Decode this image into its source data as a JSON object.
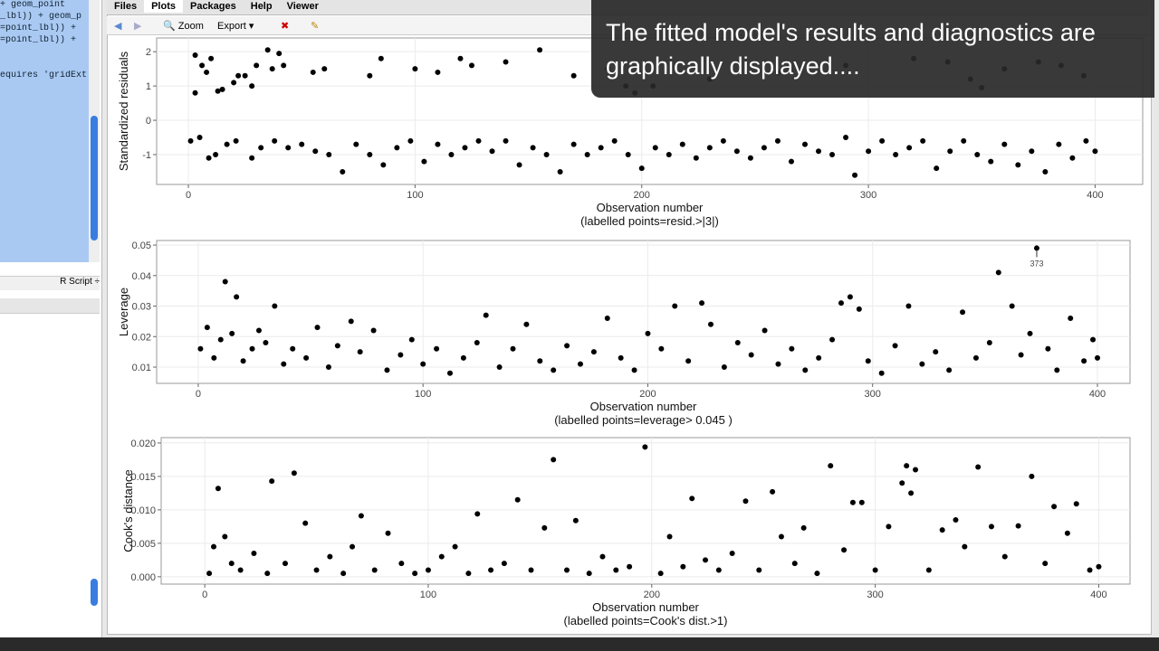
{
  "editor": {
    "lines": [
      "+ geom_point",
      "_lbl)) + geom_p",
      "=point_lbl)) +",
      "=point_lbl)) +",
      "equires 'gridExt"
    ],
    "file_type": "R Script ÷"
  },
  "tabs": [
    "Files",
    "Plots",
    "Packages",
    "Help",
    "Viewer"
  ],
  "toolbar": [
    "Zoom",
    "Export"
  ],
  "caption": "The fitted model's results and diagnostics are graphically displayed....",
  "chart_data": [
    {
      "type": "scatter",
      "ylabel": "Standardized residuals",
      "xlabel": "Observation number",
      "caption": "(labelled points=resid.>|3|)",
      "color": "#000000",
      "grid": true,
      "xlim": [
        -14,
        421
      ],
      "ylim": [
        -1.87,
        2.4
      ],
      "xticks": [
        0,
        100,
        200,
        300,
        400
      ],
      "yticks": [
        -1,
        0,
        1,
        2
      ],
      "x": [
        3,
        3,
        6,
        8,
        10,
        13,
        15,
        20,
        22,
        25,
        28,
        30,
        35,
        37,
        40,
        42,
        55,
        60,
        80,
        85,
        100,
        110,
        120,
        125,
        140,
        155,
        170,
        185,
        193,
        197,
        205,
        230,
        260,
        290,
        320,
        335,
        345,
        350,
        360,
        375,
        385,
        395,
        1,
        5,
        9,
        12,
        17,
        21,
        28,
        32,
        38,
        44,
        50,
        56,
        62,
        68,
        74,
        80,
        86,
        92,
        98,
        104,
        110,
        116,
        122,
        128,
        134,
        140,
        146,
        152,
        158,
        164,
        170,
        176,
        182,
        188,
        194,
        200,
        206,
        212,
        218,
        224,
        230,
        236,
        242,
        248,
        254,
        260,
        266,
        272,
        278,
        284,
        290,
        294,
        300,
        306,
        312,
        318,
        324,
        330,
        336,
        342,
        348,
        354,
        360,
        366,
        372,
        378,
        384,
        390,
        396,
        400
      ],
      "values": [
        0.8,
        1.9,
        1.6,
        1.4,
        1.8,
        0.85,
        0.9,
        1.1,
        1.3,
        1.3,
        1.0,
        1.6,
        2.05,
        1.5,
        1.95,
        1.6,
        1.4,
        1.5,
        1.3,
        1.8,
        1.5,
        1.4,
        1.8,
        1.6,
        1.7,
        2.05,
        1.3,
        1.5,
        1.0,
        0.8,
        1.0,
        1.2,
        1.4,
        1.6,
        1.8,
        1.7,
        1.2,
        0.95,
        1.5,
        1.7,
        1.6,
        1.3,
        -0.6,
        -0.5,
        -1.1,
        -1.0,
        -0.7,
        -0.6,
        -1.1,
        -0.8,
        -0.6,
        -0.8,
        -0.7,
        -0.9,
        -1.0,
        -1.5,
        -0.7,
        -1.0,
        -1.3,
        -0.8,
        -0.6,
        -1.2,
        -0.7,
        -1.0,
        -0.8,
        -0.6,
        -0.9,
        -0.6,
        -1.3,
        -0.8,
        -1.0,
        -1.5,
        -0.7,
        -1.0,
        -0.8,
        -0.6,
        -1.0,
        -1.4,
        -0.8,
        -1.0,
        -0.7,
        -1.1,
        -0.8,
        -0.6,
        -0.9,
        -1.1,
        -0.8,
        -0.6,
        -1.2,
        -0.7,
        -0.9,
        -1.0,
        -0.5,
        -1.6,
        -0.9,
        -0.6,
        -1.0,
        -0.8,
        -0.6,
        -1.4,
        -0.9,
        -0.6,
        -1.0,
        -1.2,
        -0.7,
        -1.3,
        -0.9,
        -1.5,
        -0.7,
        -1.1,
        -0.6,
        -0.9
      ]
    },
    {
      "type": "scatter",
      "ylabel": "Leverage",
      "xlabel": "Observation number",
      "caption": "(labelled points=leverage> 0.045 )",
      "color": "#000000",
      "grid": true,
      "point_label": "373",
      "xlim": [
        -18.5,
        414.5
      ],
      "ylim": [
        0.00467,
        0.0515
      ],
      "xticks": [
        0,
        100,
        200,
        300,
        400
      ],
      "yticks": [
        0.01,
        0.02,
        0.03,
        0.04,
        0.05
      ],
      "x": [
        1,
        4,
        7,
        10,
        12,
        15,
        17,
        20,
        24,
        27,
        30,
        34,
        38,
        42,
        48,
        53,
        58,
        62,
        68,
        72,
        78,
        84,
        90,
        95,
        100,
        106,
        112,
        118,
        124,
        128,
        134,
        140,
        146,
        152,
        158,
        164,
        170,
        176,
        182,
        188,
        194,
        200,
        206,
        212,
        218,
        224,
        228,
        234,
        240,
        246,
        252,
        258,
        264,
        270,
        276,
        282,
        286,
        290,
        294,
        298,
        304,
        310,
        316,
        322,
        328,
        334,
        340,
        346,
        352,
        356,
        362,
        366,
        370,
        373,
        378,
        382,
        388,
        394,
        398,
        400
      ],
      "values": [
        0.016,
        0.023,
        0.013,
        0.019,
        0.038,
        0.021,
        0.033,
        0.012,
        0.016,
        0.022,
        0.018,
        0.03,
        0.011,
        0.016,
        0.013,
        0.023,
        0.01,
        0.017,
        0.025,
        0.015,
        0.022,
        0.009,
        0.014,
        0.019,
        0.011,
        0.016,
        0.008,
        0.013,
        0.018,
        0.027,
        0.01,
        0.016,
        0.024,
        0.012,
        0.009,
        0.017,
        0.011,
        0.015,
        0.026,
        0.013,
        0.009,
        0.021,
        0.016,
        0.03,
        0.012,
        0.031,
        0.024,
        0.01,
        0.018,
        0.014,
        0.022,
        0.011,
        0.016,
        0.009,
        0.013,
        0.019,
        0.031,
        0.033,
        0.029,
        0.012,
        0.008,
        0.017,
        0.03,
        0.011,
        0.015,
        0.009,
        0.028,
        0.013,
        0.018,
        0.041,
        0.03,
        0.014,
        0.021,
        0.049,
        0.016,
        0.009,
        0.026,
        0.012,
        0.019,
        0.013
      ]
    },
    {
      "type": "scatter",
      "ylabel": "Cook's distance",
      "xlabel": "Observation number",
      "caption": "(labelled points=Cook's dist.>1)",
      "color": "#000000",
      "grid": true,
      "xlim": [
        -19.5,
        414
      ],
      "ylim": [
        -0.0011,
        0.0208
      ],
      "xticks": [
        0,
        100,
        200,
        300,
        400
      ],
      "yticks": [
        {
          "value": 0,
          "label": "0.000"
        },
        {
          "value": 0.005,
          "label": "0.005"
        },
        {
          "value": 0.01,
          "label": "0.010"
        },
        {
          "value": 0.015,
          "label": "0.015"
        },
        {
          "value": 0.02,
          "label": "0.020"
        }
      ],
      "x": [
        2,
        4,
        6,
        9,
        12,
        16,
        22,
        28,
        30,
        36,
        40,
        45,
        50,
        56,
        62,
        66,
        70,
        76,
        82,
        88,
        94,
        100,
        106,
        112,
        118,
        122,
        128,
        134,
        140,
        146,
        152,
        156,
        162,
        166,
        172,
        178,
        184,
        190,
        197,
        204,
        208,
        214,
        218,
        224,
        230,
        236,
        242,
        248,
        254,
        258,
        264,
        268,
        274,
        280,
        286,
        290,
        294,
        300,
        306,
        312,
        314,
        316,
        318,
        324,
        330,
        336,
        340,
        346,
        352,
        358,
        364,
        370,
        376,
        380,
        386,
        390,
        396,
        400
      ],
      "values": [
        0.0005,
        0.0045,
        0.0132,
        0.006,
        0.002,
        0.001,
        0.0035,
        0.0005,
        0.0143,
        0.002,
        0.0155,
        0.008,
        0.001,
        0.003,
        0.0005,
        0.0045,
        0.0091,
        0.001,
        0.0065,
        0.002,
        0.0005,
        0.001,
        0.003,
        0.0045,
        0.0005,
        0.0094,
        0.001,
        0.002,
        0.0115,
        0.001,
        0.0073,
        0.0175,
        0.001,
        0.0084,
        0.0005,
        0.003,
        0.001,
        0.0015,
        0.0194,
        0.0005,
        0.006,
        0.0015,
        0.0117,
        0.0025,
        0.001,
        0.0035,
        0.0113,
        0.001,
        0.0127,
        0.006,
        0.002,
        0.0073,
        0.0005,
        0.0166,
        0.004,
        0.0111,
        0.0111,
        0.001,
        0.0075,
        0.014,
        0.0166,
        0.0125,
        0.016,
        0.001,
        0.007,
        0.0085,
        0.0045,
        0.0164,
        0.0075,
        0.003,
        0.0076,
        0.015,
        0.002,
        0.0105,
        0.0065,
        0.0109,
        0.001,
        0.0015
      ]
    }
  ]
}
